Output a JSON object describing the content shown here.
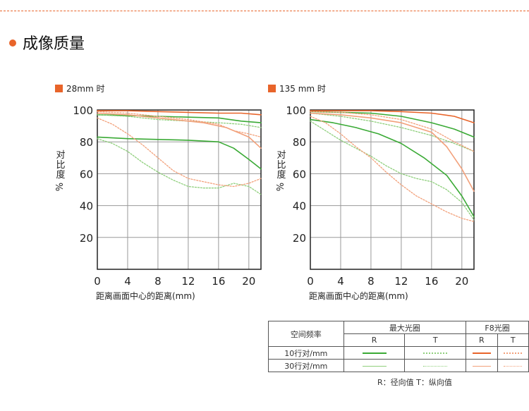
{
  "page": {
    "title": "成像质量",
    "accent": "#e8642a"
  },
  "colors": {
    "green_solid": "#3aaa35",
    "green_light": "#8fcf7c",
    "orange_solid": "#e8642a",
    "orange_light": "#f2a07a"
  },
  "chart_data": [
    {
      "type": "line",
      "title": "28mm 时",
      "xlabel": "距离画面中心的距离(mm)",
      "ylabel": "对比度%",
      "xlim": [
        0,
        21.6
      ],
      "ylim": [
        0,
        100
      ],
      "xticks": [
        0,
        4,
        8,
        12,
        16,
        20
      ],
      "yticks": [
        20,
        40,
        60,
        80,
        100
      ],
      "grid": true,
      "series": [
        {
          "color": "green_solid",
          "dash": false,
          "x": [
            0,
            4,
            8,
            12,
            16,
            19,
            21.6
          ],
          "y": [
            97,
            96.5,
            96,
            95.5,
            95,
            93,
            92
          ]
        },
        {
          "color": "green_light",
          "dash": true,
          "x": [
            0,
            4,
            8,
            12,
            16,
            19,
            21.6
          ],
          "y": [
            97,
            96,
            94,
            93,
            92,
            91,
            89
          ]
        },
        {
          "color": "green_solid",
          "dash": false,
          "x": [
            0,
            4,
            8,
            12,
            16,
            18,
            20,
            21.6
          ],
          "y": [
            83,
            82,
            81.5,
            81,
            80,
            76,
            69,
            63
          ]
        },
        {
          "color": "green_light",
          "dash": true,
          "x": [
            0,
            2,
            4,
            6,
            8,
            10,
            12,
            14,
            16,
            18,
            20,
            21.6
          ],
          "y": [
            82,
            79,
            74,
            67,
            61,
            56,
            52,
            51,
            51,
            54,
            52,
            47
          ]
        },
        {
          "color": "orange_solid",
          "dash": false,
          "x": [
            0,
            4,
            8,
            12,
            16,
            19,
            21.6
          ],
          "y": [
            99.5,
            99.5,
            99,
            98.5,
            98,
            98,
            97
          ]
        },
        {
          "color": "orange_light",
          "dash": true,
          "x": [
            0,
            4,
            8,
            12,
            16,
            18,
            20,
            21.6
          ],
          "y": [
            99,
            98,
            96,
            94,
            91,
            87,
            85,
            83
          ]
        },
        {
          "color": "orange_light",
          "dash": false,
          "x": [
            0,
            4,
            8,
            12,
            14,
            17,
            20,
            21.6
          ],
          "y": [
            98,
            97,
            95,
            93,
            92,
            89,
            83,
            76
          ]
        },
        {
          "color": "orange_light",
          "dash": true,
          "x": [
            0,
            2,
            4,
            6,
            8,
            10,
            12,
            14,
            16,
            18,
            20,
            21.6
          ],
          "y": [
            95,
            91,
            85,
            78,
            70,
            62,
            57,
            55,
            53,
            52,
            54,
            57
          ]
        }
      ]
    },
    {
      "type": "line",
      "title": "135 mm 时",
      "xlabel": "距离画面中心的距离(mm)",
      "ylabel": "对比度%",
      "xlim": [
        0,
        21.6
      ],
      "ylim": [
        0,
        100
      ],
      "xticks": [
        0,
        4,
        8,
        12,
        16,
        20
      ],
      "yticks": [
        20,
        40,
        60,
        80,
        100
      ],
      "grid": true,
      "series": [
        {
          "color": "green_solid",
          "dash": false,
          "x": [
            0,
            4,
            8,
            12,
            16,
            19,
            21.6
          ],
          "y": [
            99,
            98.5,
            98,
            96,
            92,
            88,
            83
          ]
        },
        {
          "color": "green_light",
          "dash": true,
          "x": [
            0,
            4,
            8,
            12,
            16,
            19,
            21.6
          ],
          "y": [
            98,
            96,
            93,
            89,
            84,
            79,
            74
          ]
        },
        {
          "color": "green_solid",
          "dash": false,
          "x": [
            0,
            3,
            6,
            9,
            12,
            15,
            18,
            20,
            21.6
          ],
          "y": [
            94,
            92,
            89,
            85,
            79,
            70,
            59,
            46,
            33
          ]
        },
        {
          "color": "green_light",
          "dash": true,
          "x": [
            0,
            2,
            4,
            6,
            8,
            10,
            12,
            14,
            16,
            18,
            20,
            21.6
          ],
          "y": [
            93,
            87,
            81,
            76,
            71,
            65,
            60,
            57,
            55,
            50,
            42,
            31
          ]
        },
        {
          "color": "orange_solid",
          "dash": false,
          "x": [
            0,
            4,
            8,
            12,
            16,
            19,
            21.6
          ],
          "y": [
            99.5,
            99.5,
            99.5,
            99,
            98,
            96,
            92
          ]
        },
        {
          "color": "orange_light",
          "dash": true,
          "x": [
            0,
            4,
            8,
            12,
            16,
            19,
            21.6
          ],
          "y": [
            99,
            98.5,
            97,
            94,
            88,
            80,
            74
          ]
        },
        {
          "color": "orange_light",
          "dash": false,
          "x": [
            0,
            4,
            8,
            12,
            16,
            18,
            20,
            21.6
          ],
          "y": [
            98,
            97,
            95,
            92,
            86,
            77,
            63,
            49
          ]
        },
        {
          "color": "orange_light",
          "dash": true,
          "x": [
            0,
            2,
            4,
            6,
            8,
            10,
            12,
            14,
            16,
            18,
            20,
            21.6
          ],
          "y": [
            96,
            92,
            85,
            77,
            70,
            61,
            53,
            46,
            41,
            36,
            32,
            30
          ]
        }
      ]
    }
  ],
  "legend": {
    "header_label": "空间频率",
    "col_max": "最大光圈",
    "col_f8": "F8光圈",
    "r": "R",
    "t": "T",
    "row10": "10行对/mm",
    "row30": "30行对/mm"
  },
  "note": "R：径向值   T：纵向值"
}
